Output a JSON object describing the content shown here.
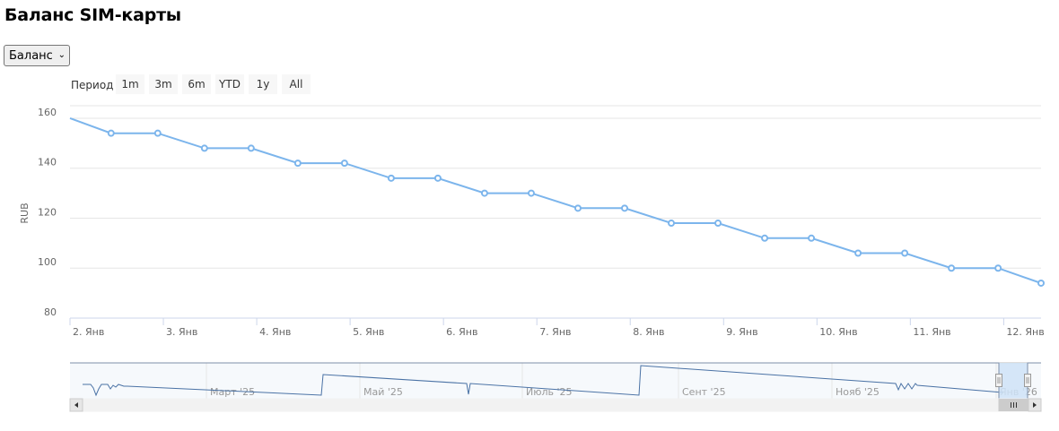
{
  "page": {
    "title": "Баланс SIM-карты"
  },
  "metric_select": {
    "value": "Баланс"
  },
  "range_selector": {
    "label": "Период",
    "buttons": [
      "1m",
      "3m",
      "6m",
      "YTD",
      "1y",
      "All"
    ]
  },
  "colors": {
    "series": "#7cb5ec",
    "navigator_line": "#4a72a5",
    "grid": "#e6e6e6",
    "axis": "#ccd6eb",
    "button_bg": "#f7f7f7",
    "navigator_mask": "#cfe3f7"
  },
  "chart_data": {
    "type": "line",
    "ylabel": "RUB",
    "ylim": [
      80,
      165
    ],
    "yticks": [
      80,
      100,
      120,
      140,
      160
    ],
    "x_tick_labels": [
      "2. Янв",
      "3. Янв",
      "4. Янв",
      "5. Янв",
      "6. Янв",
      "7. Янв",
      "8. Янв",
      "9. Янв",
      "10. Янв",
      "11. Янв",
      "12. Янв"
    ],
    "xlim_days": [
      2,
      12.4
    ],
    "grid": true,
    "legend": "none",
    "series": [
      {
        "x": [
          2,
          2.44,
          2.94,
          3.44,
          3.94,
          4.44,
          4.94,
          5.44,
          5.94,
          6.44,
          6.94,
          7.44,
          7.94,
          8.44,
          8.94,
          9.44,
          9.94,
          10.44,
          10.94,
          11.44,
          11.94,
          12.4
        ],
        "values": [
          160,
          154,
          154,
          148,
          148,
          142,
          142,
          136,
          136,
          130,
          130,
          124,
          124,
          118,
          118,
          112,
          112,
          106,
          106,
          100,
          100,
          94
        ]
      }
    ],
    "navigator": {
      "x_labels": [
        "Март '25",
        "Май '25",
        "Июль '25",
        "Сент '25",
        "Нояб '25",
        "Янв '26"
      ]
    }
  }
}
